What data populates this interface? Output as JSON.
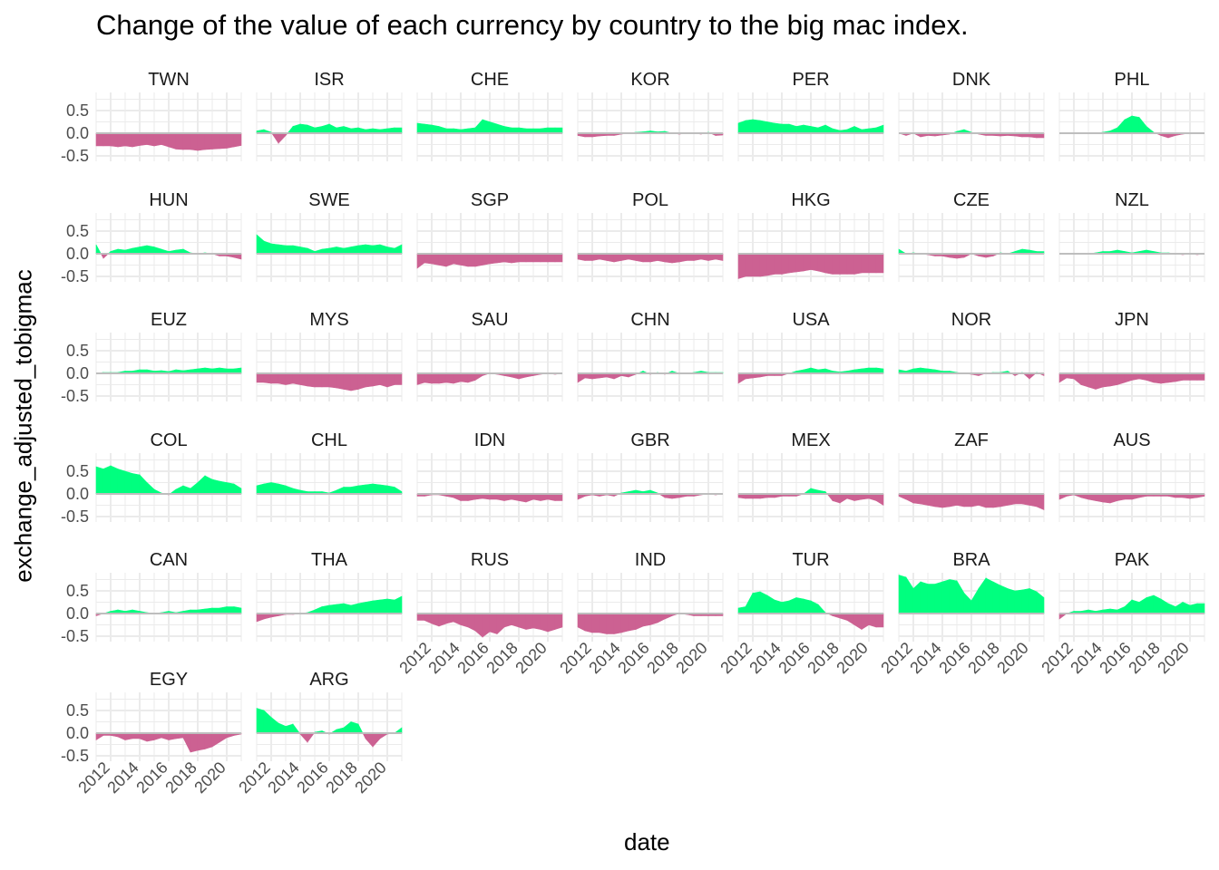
{
  "chart_data": {
    "type": "area",
    "title": "Change of the value of each currency by country to the big mac index.",
    "xlabel": "date",
    "ylabel": "exchange_adjusted_tobigmac",
    "x_ticks": [
      "2012",
      "2014",
      "2016",
      "2018",
      "2020"
    ],
    "y_ticks": [
      0.5,
      0.0,
      -0.5
    ],
    "y_tick_labels": [
      "0.5",
      "0.0",
      "-0.5"
    ],
    "xlim": [
      2011.0,
      2021.0
    ],
    "ylim": [
      -0.62,
      0.9
    ],
    "grid": true,
    "colors": {
      "positive": "#00FF7F",
      "negative": "#CC6192",
      "zero_line": "#BEBEBE",
      "grid": "#EBEBEB"
    },
    "x": [
      2011.0,
      2011.5,
      2012.0,
      2012.5,
      2013.0,
      2013.5,
      2014.0,
      2014.5,
      2015.0,
      2015.5,
      2016.0,
      2016.5,
      2017.0,
      2017.5,
      2018.0,
      2018.5,
      2019.0,
      2019.5,
      2020.0,
      2020.5,
      2021.0
    ],
    "series": [
      {
        "name": "TWN",
        "values": [
          -0.28,
          -0.28,
          -0.28,
          -0.3,
          -0.28,
          -0.3,
          -0.27,
          -0.25,
          -0.28,
          -0.25,
          -0.3,
          -0.35,
          -0.36,
          -0.36,
          -0.38,
          -0.36,
          -0.35,
          -0.34,
          -0.33,
          -0.3,
          -0.27
        ]
      },
      {
        "name": "ISR",
        "values": [
          0.05,
          0.08,
          0.02,
          -0.22,
          -0.05,
          0.15,
          0.2,
          0.18,
          0.12,
          0.15,
          0.2,
          0.12,
          0.15,
          0.1,
          0.12,
          0.08,
          0.1,
          0.08,
          0.1,
          0.12,
          0.12
        ]
      },
      {
        "name": "CHE",
        "values": [
          0.22,
          0.2,
          0.18,
          0.15,
          0.1,
          0.1,
          0.08,
          0.1,
          0.12,
          0.3,
          0.25,
          0.2,
          0.15,
          0.12,
          0.12,
          0.1,
          0.1,
          0.1,
          0.12,
          0.12,
          0.12
        ]
      },
      {
        "name": "KOR",
        "values": [
          -0.05,
          -0.08,
          -0.08,
          -0.06,
          -0.05,
          -0.05,
          -0.02,
          0.0,
          0.02,
          0.03,
          0.05,
          0.03,
          0.04,
          0.0,
          -0.02,
          0.0,
          0.0,
          -0.02,
          0.02,
          -0.05,
          -0.04
        ]
      },
      {
        "name": "PER",
        "values": [
          0.22,
          0.28,
          0.3,
          0.28,
          0.25,
          0.22,
          0.2,
          0.2,
          0.15,
          0.18,
          0.15,
          0.12,
          0.18,
          0.1,
          0.06,
          0.08,
          0.15,
          0.08,
          0.1,
          0.12,
          0.18
        ]
      },
      {
        "name": "DNK",
        "values": [
          0.0,
          -0.05,
          0.0,
          -0.08,
          -0.05,
          -0.06,
          -0.04,
          -0.02,
          0.04,
          0.08,
          0.02,
          -0.02,
          -0.05,
          -0.05,
          -0.06,
          -0.05,
          -0.06,
          -0.08,
          -0.08,
          -0.1,
          -0.1
        ]
      },
      {
        "name": "PHL",
        "values": [
          0.0,
          0.0,
          0.0,
          0.0,
          0.0,
          0.0,
          0.02,
          0.05,
          0.12,
          0.3,
          0.38,
          0.35,
          0.15,
          0.02,
          -0.05,
          -0.1,
          -0.05,
          -0.02,
          0.0,
          0.0,
          0.0
        ]
      },
      {
        "name": "HUN",
        "values": [
          0.2,
          -0.1,
          0.05,
          0.1,
          0.08,
          0.12,
          0.15,
          0.18,
          0.15,
          0.1,
          0.05,
          0.08,
          0.1,
          0.02,
          0.0,
          0.02,
          0.0,
          -0.05,
          -0.05,
          -0.08,
          -0.12
        ]
      },
      {
        "name": "SWE",
        "values": [
          0.42,
          0.28,
          0.22,
          0.2,
          0.18,
          0.18,
          0.15,
          0.12,
          0.05,
          0.1,
          0.12,
          0.15,
          0.12,
          0.15,
          0.18,
          0.2,
          0.18,
          0.2,
          0.15,
          0.12,
          0.2
        ]
      },
      {
        "name": "SGP",
        "values": [
          -0.32,
          -0.2,
          -0.22,
          -0.25,
          -0.28,
          -0.22,
          -0.25,
          -0.28,
          -0.28,
          -0.25,
          -0.22,
          -0.2,
          -0.18,
          -0.2,
          -0.18,
          -0.18,
          -0.18,
          -0.18,
          -0.18,
          -0.18,
          -0.18
        ]
      },
      {
        "name": "POL",
        "values": [
          -0.12,
          -0.15,
          -0.15,
          -0.12,
          -0.15,
          -0.18,
          -0.15,
          -0.12,
          -0.15,
          -0.18,
          -0.18,
          -0.15,
          -0.18,
          -0.2,
          -0.18,
          -0.15,
          -0.15,
          -0.12,
          -0.15,
          -0.12,
          -0.15
        ]
      },
      {
        "name": "HKG",
        "values": [
          -0.55,
          -0.5,
          -0.5,
          -0.5,
          -0.48,
          -0.45,
          -0.45,
          -0.42,
          -0.4,
          -0.38,
          -0.35,
          -0.38,
          -0.42,
          -0.45,
          -0.45,
          -0.45,
          -0.45,
          -0.42,
          -0.42,
          -0.42,
          -0.42
        ]
      },
      {
        "name": "CZE",
        "values": [
          0.1,
          0.0,
          0.02,
          0.0,
          -0.02,
          -0.05,
          -0.05,
          -0.08,
          -0.1,
          -0.08,
          0.0,
          -0.05,
          -0.08,
          -0.05,
          0.02,
          0.0,
          0.05,
          0.1,
          0.08,
          0.05,
          0.05
        ]
      },
      {
        "name": "NZL",
        "values": [
          0.0,
          0.0,
          0.0,
          0.0,
          0.0,
          0.02,
          0.05,
          0.05,
          0.08,
          0.05,
          0.02,
          0.05,
          0.08,
          0.05,
          0.02,
          0.02,
          0.0,
          -0.02,
          0.0,
          -0.02,
          0.0
        ]
      },
      {
        "name": "EUZ",
        "values": [
          0.0,
          0.02,
          0.02,
          0.02,
          0.05,
          0.05,
          0.08,
          0.08,
          0.05,
          0.06,
          0.04,
          0.08,
          0.06,
          0.08,
          0.1,
          0.12,
          0.1,
          0.12,
          0.1,
          0.1,
          0.12
        ]
      },
      {
        "name": "MYS",
        "values": [
          -0.2,
          -0.2,
          -0.22,
          -0.22,
          -0.25,
          -0.22,
          -0.25,
          -0.28,
          -0.3,
          -0.3,
          -0.3,
          -0.32,
          -0.35,
          -0.38,
          -0.35,
          -0.3,
          -0.28,
          -0.25,
          -0.3,
          -0.25,
          -0.25
        ]
      },
      {
        "name": "SAU",
        "values": [
          -0.25,
          -0.2,
          -0.22,
          -0.22,
          -0.2,
          -0.22,
          -0.18,
          -0.2,
          -0.15,
          -0.05,
          0.0,
          -0.02,
          -0.05,
          -0.08,
          -0.12,
          -0.08,
          -0.05,
          -0.02,
          0.0,
          -0.02,
          0.0
        ]
      },
      {
        "name": "CHN",
        "values": [
          -0.2,
          -0.1,
          -0.12,
          -0.1,
          -0.08,
          -0.12,
          -0.05,
          -0.08,
          -0.02,
          0.05,
          -0.02,
          0.02,
          -0.02,
          0.05,
          0.0,
          0.0,
          0.02,
          0.05,
          0.02,
          0.02,
          0.02
        ]
      },
      {
        "name": "USA",
        "values": [
          -0.22,
          -0.12,
          -0.1,
          -0.08,
          -0.05,
          -0.05,
          -0.05,
          0.0,
          0.05,
          0.08,
          0.12,
          0.08,
          0.1,
          0.05,
          0.03,
          0.05,
          0.08,
          0.1,
          0.12,
          0.12,
          0.1
        ]
      },
      {
        "name": "NOR",
        "values": [
          0.08,
          0.05,
          0.1,
          0.12,
          0.1,
          0.08,
          0.05,
          0.05,
          0.02,
          0.0,
          -0.02,
          -0.05,
          0.0,
          0.02,
          0.02,
          0.05,
          -0.05,
          0.02,
          -0.12,
          0.02,
          -0.05
        ]
      },
      {
        "name": "JPN",
        "values": [
          -0.2,
          -0.1,
          -0.12,
          -0.25,
          -0.3,
          -0.35,
          -0.3,
          -0.28,
          -0.25,
          -0.2,
          -0.15,
          -0.12,
          -0.15,
          -0.2,
          -0.22,
          -0.2,
          -0.18,
          -0.15,
          -0.15,
          -0.15,
          -0.15
        ]
      },
      {
        "name": "COL",
        "values": [
          0.6,
          0.55,
          0.62,
          0.55,
          0.5,
          0.45,
          0.42,
          0.25,
          0.1,
          0.02,
          -0.02,
          0.1,
          0.18,
          0.12,
          0.25,
          0.4,
          0.32,
          0.28,
          0.25,
          0.22,
          0.12
        ]
      },
      {
        "name": "CHL",
        "values": [
          0.18,
          0.22,
          0.25,
          0.22,
          0.18,
          0.12,
          0.08,
          0.05,
          0.05,
          0.05,
          0.02,
          0.08,
          0.15,
          0.15,
          0.18,
          0.2,
          0.22,
          0.2,
          0.18,
          0.15,
          0.05
        ]
      },
      {
        "name": "IDN",
        "values": [
          -0.05,
          -0.05,
          -0.02,
          -0.02,
          -0.05,
          -0.08,
          -0.15,
          -0.15,
          -0.12,
          -0.1,
          -0.12,
          -0.12,
          -0.15,
          -0.12,
          -0.15,
          -0.18,
          -0.12,
          -0.15,
          -0.12,
          -0.15,
          -0.15
        ]
      },
      {
        "name": "GBR",
        "values": [
          -0.12,
          -0.05,
          -0.02,
          -0.05,
          -0.02,
          -0.05,
          0.02,
          0.05,
          0.08,
          0.05,
          0.08,
          0.02,
          -0.08,
          -0.1,
          -0.08,
          -0.05,
          -0.05,
          -0.02,
          0.0,
          -0.02,
          0.0
        ]
      },
      {
        "name": "MEX",
        "values": [
          -0.08,
          -0.1,
          -0.1,
          -0.1,
          -0.08,
          -0.08,
          -0.05,
          -0.05,
          -0.05,
          0.0,
          0.12,
          0.08,
          0.05,
          -0.15,
          -0.2,
          -0.1,
          -0.15,
          -0.12,
          -0.1,
          -0.15,
          -0.25
        ]
      },
      {
        "name": "ZAF",
        "values": [
          -0.05,
          -0.12,
          -0.2,
          -0.22,
          -0.25,
          -0.28,
          -0.3,
          -0.28,
          -0.25,
          -0.28,
          -0.28,
          -0.25,
          -0.3,
          -0.3,
          -0.28,
          -0.25,
          -0.22,
          -0.22,
          -0.25,
          -0.28,
          -0.35
        ]
      },
      {
        "name": "AUS",
        "values": [
          -0.12,
          -0.05,
          -0.02,
          -0.08,
          -0.12,
          -0.15,
          -0.18,
          -0.2,
          -0.15,
          -0.12,
          -0.12,
          -0.08,
          -0.05,
          -0.05,
          -0.05,
          -0.05,
          -0.08,
          -0.08,
          -0.1,
          -0.08,
          -0.05
        ]
      },
      {
        "name": "CAN",
        "values": [
          -0.05,
          0.0,
          0.05,
          0.08,
          0.05,
          0.08,
          0.05,
          0.02,
          0.0,
          0.02,
          0.05,
          0.02,
          0.05,
          0.08,
          0.08,
          0.1,
          0.12,
          0.12,
          0.15,
          0.15,
          0.12
        ]
      },
      {
        "name": "THA",
        "values": [
          -0.18,
          -0.12,
          -0.08,
          -0.05,
          -0.02,
          -0.02,
          0.0,
          0.02,
          0.08,
          0.15,
          0.18,
          0.2,
          0.22,
          0.18,
          0.22,
          0.25,
          0.28,
          0.3,
          0.32,
          0.3,
          0.38
        ]
      },
      {
        "name": "RUS",
        "values": [
          -0.15,
          -0.15,
          -0.22,
          -0.28,
          -0.22,
          -0.18,
          -0.25,
          -0.3,
          -0.38,
          -0.52,
          -0.4,
          -0.45,
          -0.3,
          -0.25,
          -0.3,
          -0.35,
          -0.32,
          -0.35,
          -0.4,
          -0.35,
          -0.3
        ]
      },
      {
        "name": "IND",
        "values": [
          -0.3,
          -0.38,
          -0.42,
          -0.42,
          -0.45,
          -0.45,
          -0.42,
          -0.38,
          -0.35,
          -0.28,
          -0.25,
          -0.2,
          -0.12,
          -0.05,
          0.0,
          -0.02,
          -0.05,
          -0.05,
          -0.05,
          -0.05,
          -0.05
        ]
      },
      {
        "name": "TUR",
        "values": [
          0.12,
          0.15,
          0.45,
          0.48,
          0.4,
          0.3,
          0.25,
          0.28,
          0.35,
          0.32,
          0.28,
          0.2,
          0.02,
          -0.05,
          -0.1,
          -0.15,
          -0.25,
          -0.35,
          -0.25,
          -0.3,
          -0.3
        ]
      },
      {
        "name": "BRA",
        "values": [
          0.85,
          0.8,
          0.55,
          0.7,
          0.65,
          0.65,
          0.7,
          0.75,
          0.72,
          0.45,
          0.28,
          0.55,
          0.78,
          0.7,
          0.62,
          0.55,
          0.5,
          0.52,
          0.55,
          0.48,
          0.35
        ]
      },
      {
        "name": "PAK",
        "values": [
          -0.12,
          0.0,
          0.05,
          0.05,
          0.08,
          0.05,
          0.08,
          0.1,
          0.08,
          0.15,
          0.3,
          0.25,
          0.35,
          0.4,
          0.32,
          0.22,
          0.15,
          0.25,
          0.18,
          0.22,
          0.22
        ]
      },
      {
        "name": "EGY",
        "values": [
          -0.15,
          -0.05,
          -0.05,
          -0.08,
          -0.15,
          -0.12,
          -0.12,
          -0.18,
          -0.15,
          -0.1,
          -0.15,
          -0.12,
          -0.1,
          -0.42,
          -0.38,
          -0.35,
          -0.3,
          -0.2,
          -0.1,
          -0.05,
          -0.02
        ]
      },
      {
        "name": "ARG",
        "values": [
          0.55,
          0.5,
          0.35,
          0.22,
          0.15,
          0.2,
          -0.02,
          -0.2,
          0.02,
          0.05,
          -0.02,
          0.08,
          0.12,
          0.25,
          0.2,
          -0.12,
          -0.3,
          -0.12,
          -0.02,
          0.0,
          0.12
        ]
      }
    ]
  }
}
